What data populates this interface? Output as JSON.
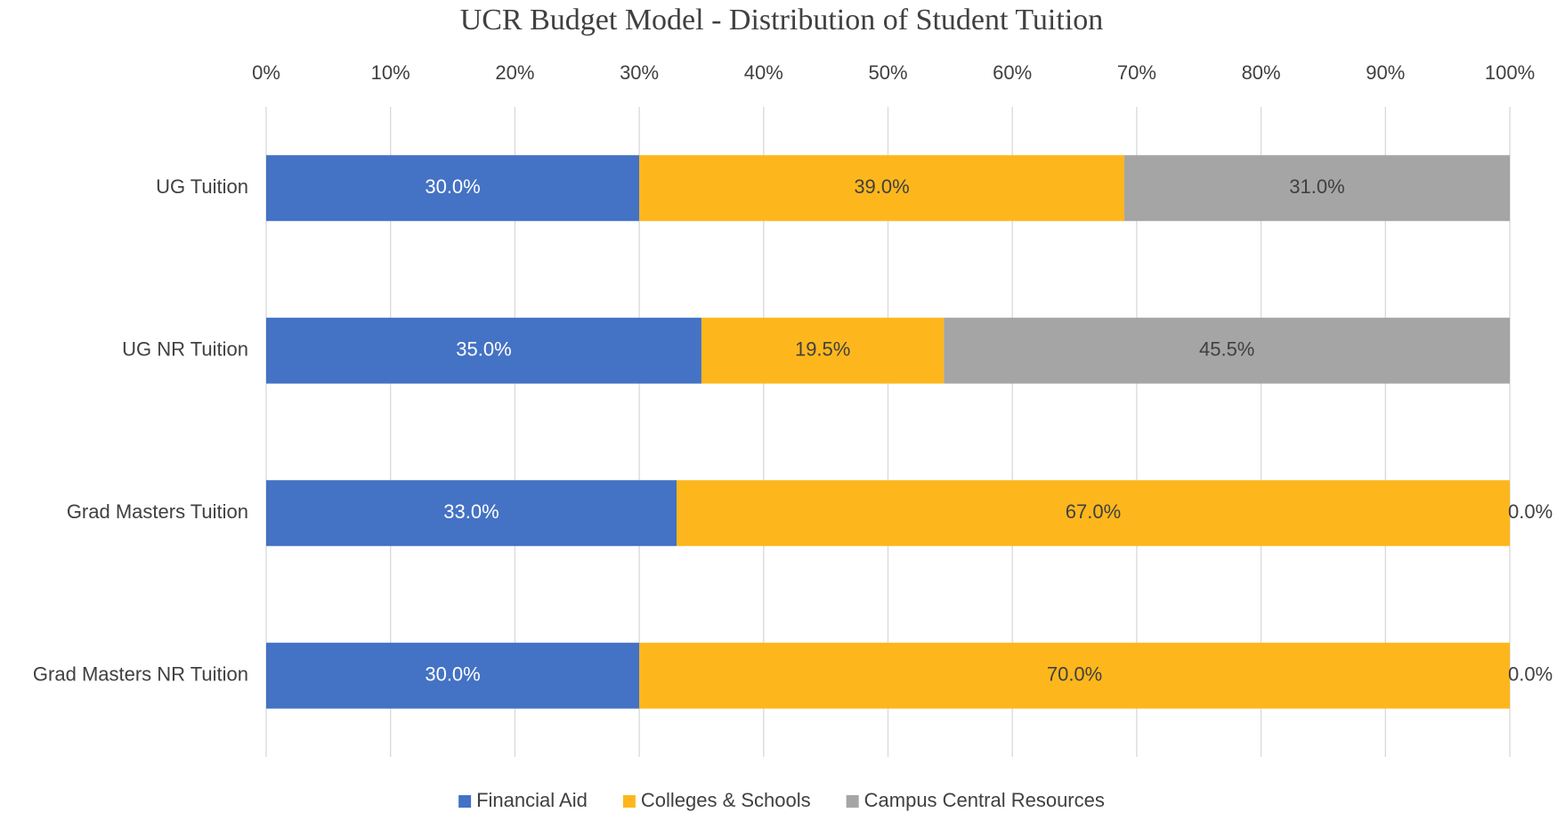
{
  "chart_data": {
    "type": "stacked-barh",
    "title": "UCR Budget Model - Distribution of Student Tuition",
    "categories": [
      "UG Tuition",
      "UG NR Tuition",
      "Grad Masters Tuition",
      "Grad Masters NR Tuition"
    ],
    "series": [
      {
        "name": "Financial Aid",
        "color": "#4472c4",
        "values": [
          30,
          35,
          33,
          30
        ],
        "value_labels": [
          "30.0%",
          "35.0%",
          "33.0%",
          "30.0%"
        ]
      },
      {
        "name": "Colleges & Schools",
        "color": "#fdb71d",
        "values": [
          39,
          19.5,
          67,
          70
        ],
        "value_labels": [
          "39.0%",
          "19.5%",
          "67.0%",
          "70.0%"
        ]
      },
      {
        "name": "Campus Central Resources",
        "color": "#a5a5a5",
        "values": [
          31,
          45.5,
          0,
          0
        ],
        "value_labels": [
          "31.0%",
          "45.5%",
          "0.0%",
          "0.0%"
        ]
      }
    ],
    "xlim": [
      0,
      100
    ],
    "xticks": [
      {
        "value": 0,
        "label": "0%"
      },
      {
        "value": 10,
        "label": "10%"
      },
      {
        "value": 20,
        "label": "20%"
      },
      {
        "value": 30,
        "label": "30%"
      },
      {
        "value": 40,
        "label": "40%"
      },
      {
        "value": 50,
        "label": "50%"
      },
      {
        "value": 60,
        "label": "60%"
      },
      {
        "value": 70,
        "label": "70%"
      },
      {
        "value": 80,
        "label": "80%"
      },
      {
        "value": 90,
        "label": "90%"
      },
      {
        "value": 100,
        "label": "100%"
      }
    ],
    "grid": true,
    "legend": "bottom"
  }
}
